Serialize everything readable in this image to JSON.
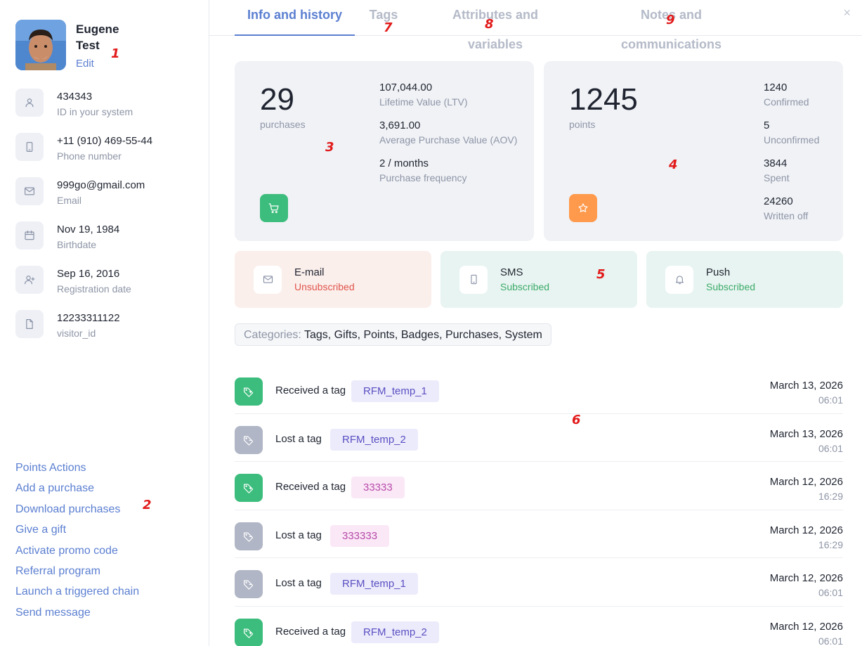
{
  "profile": {
    "name": "Eugene Test",
    "edit_label": "Edit"
  },
  "info": [
    {
      "icon": "user-icon",
      "value": "434343",
      "label": "ID in your system"
    },
    {
      "icon": "phone-icon",
      "value": "+11 (910) 469-55-44",
      "label": "Phone number"
    },
    {
      "icon": "mail-icon",
      "value": "999go@gmail.com",
      "label": "Email"
    },
    {
      "icon": "calendar-icon",
      "value": "Nov 19, 1984",
      "label": "Birthdate"
    },
    {
      "icon": "user-plus-icon",
      "value": "Sep 16, 2016",
      "label": "Registration date"
    },
    {
      "icon": "file-icon",
      "value": "12233311122",
      "label": "visitor_id"
    }
  ],
  "actions": [
    "Points Actions",
    "Add a purchase",
    "Download purchases",
    "Give a gift",
    "Activate promo code",
    "Referral program",
    "Launch a triggered chain",
    "Send message"
  ],
  "tabs": [
    {
      "label": "Info and history",
      "active": true
    },
    {
      "label": "Tags",
      "active": false
    },
    {
      "label": "Attributes and variables",
      "active": false
    },
    {
      "label": "Notes and communications",
      "active": false
    }
  ],
  "close_label": "×",
  "purchases_card": {
    "count": "29",
    "count_label": "purchases",
    "metrics": [
      {
        "value": "107,044.00",
        "label": "Lifetime Value (LTV)"
      },
      {
        "value": "3,691.00",
        "label": "Average Purchase Value (AOV)"
      },
      {
        "value": "2 / months",
        "label": "Purchase frequency"
      }
    ],
    "button_icon": "cart-icon",
    "button_color": "#3dbd7d"
  },
  "points_card": {
    "count": "1245",
    "count_label": "points",
    "metrics": [
      {
        "value": "1240",
        "label": "Confirmed"
      },
      {
        "value": "5",
        "label": "Unconfirmed"
      },
      {
        "value": "3844",
        "label": "Spent"
      },
      {
        "value": "24260",
        "label": "Written off"
      }
    ],
    "button_icon": "star-icon",
    "button_color": "#ff9a4d"
  },
  "channels": [
    {
      "name": "E-mail",
      "status": "Unsubscribed",
      "icon": "mail-icon",
      "bg": "#fbefec",
      "status_color": "#e0544a"
    },
    {
      "name": "SMS",
      "status": "Subscribed",
      "icon": "phone-icon",
      "bg": "#e8f4f1",
      "status_color": "#3dab6a"
    },
    {
      "name": "Push",
      "status": "Subscribed",
      "icon": "bell-icon",
      "bg": "#e8f4f1",
      "status_color": "#3dab6a"
    }
  ],
  "categories": {
    "label": "Categories:",
    "items": "Tags, Gifts, Points, Badges, Purchases, System"
  },
  "history": [
    {
      "event": "Received a tag",
      "tag": "RFM_temp_1",
      "date": "March 13, 2026",
      "time": "06:01",
      "kind": "received",
      "tag_style": "violet"
    },
    {
      "event": "Lost a tag",
      "tag": "RFM_temp_2",
      "date": "March 13, 2026",
      "time": "06:01",
      "kind": "lost",
      "tag_style": "violet"
    },
    {
      "event": "Received a tag",
      "tag": "33333",
      "date": "March 12, 2026",
      "time": "16:29",
      "kind": "received",
      "tag_style": "pink"
    },
    {
      "event": "Lost a tag",
      "tag": "333333",
      "date": "March 12, 2026",
      "time": "16:29",
      "kind": "lost",
      "tag_style": "pink"
    },
    {
      "event": "Lost a tag",
      "tag": "RFM_temp_1",
      "date": "March 12, 2026",
      "time": "06:01",
      "kind": "lost",
      "tag_style": "violet"
    },
    {
      "event": "Received a tag",
      "tag": "RFM_temp_2",
      "date": "March 12, 2026",
      "time": "06:01",
      "kind": "received",
      "tag_style": "violet"
    }
  ],
  "colors": {
    "accent": "#5b7fd1",
    "received_icon_bg": "#3dbd7d",
    "lost_icon_bg": "#b0b6c5",
    "tag_violet_bg": "#ecebfb",
    "tag_violet_text": "#5a4fc2",
    "tag_pink_bg": "#fbe8f7",
    "tag_pink_text": "#b64ba8"
  },
  "annotations": [
    "1",
    "2",
    "3",
    "4",
    "5",
    "6",
    "7",
    "8",
    "9"
  ]
}
